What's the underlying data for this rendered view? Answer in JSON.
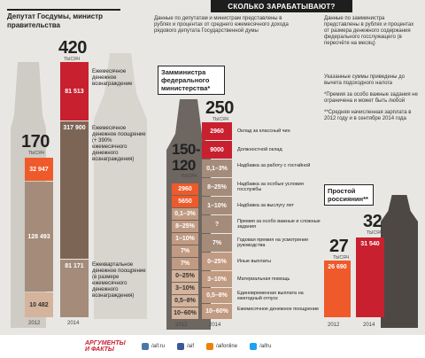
{
  "header": {
    "banner": "СКОЛЬКО ЗАРАБАТЫВАЮТ?"
  },
  "left": {
    "title": "Депутат Госдумы, министр правительства",
    "total_2012": "170",
    "total_2014": "420",
    "unit": "ТЫСЯЧ",
    "bar2012": [
      "32 947",
      "128 493",
      "10 482"
    ],
    "bar2014": [
      "81 513",
      "317 900",
      "81 171"
    ],
    "labels": [
      "Ежемесячное денежное вознаграждение",
      "Ежемесячное денежное поощрение (+ 390% ежемесячного денежного вознаграждения)",
      "Ежеквартальное денежное поощрение (в размере ежемесячного денежного вознаграждения)"
    ],
    "years": [
      "2012",
      "2014"
    ]
  },
  "center": {
    "note": "Данные по депутатам и министрам представлены в рублях и процентах от среднего ежемесячного дохода рядового депутата Государственной думы",
    "box_title": "Замминистра федерального министерства*",
    "total_2012": "150-120",
    "total_2014": "250",
    "unit": "ТЫСЯЧ",
    "bar2012": [
      "2960",
      "5650",
      "0,1–3%",
      "8–25%",
      "1–10%",
      "7%",
      "7%",
      "0–25%",
      "3–10%",
      "0,5–8%",
      "10–60%"
    ],
    "bar2014": [
      "2960",
      "9000",
      "0,1–3%",
      "8–25%",
      "1–10%",
      "?",
      "7%",
      "0–25%",
      "3–10%",
      "0,5–8%",
      "10–60%"
    ],
    "row_labels": [
      "Оклад за классный чин",
      "Должностной оклад",
      "Надбавка за работу с гостайной",
      "Надбавка за особые условия госслужбы",
      "Надбавка за выслугу лет",
      "Премия за особо важные и сложные задания",
      "Годовая премия на усмотрение руководства",
      "Иные выплаты",
      "Материальная помощь",
      "Единовременная выплата на ежегодный отпуск",
      "Ежемесячное денежное поощрение"
    ],
    "years": [
      "2012",
      "2014"
    ]
  },
  "right": {
    "note": "Данные по замминистра представлены в рублях и процентах от размера денежного содержания федерального госслужащего (в пересчёте на месяц)",
    "notes2": [
      "Указанные суммы приведены до вычета подоходного налога",
      "*Премия за особо важные задания не ограничена и может быть любой",
      "**Средняя начисленная зарплата в 2012 году и в сентябре 2014 года"
    ],
    "box_title": "Простой россиянин**",
    "total_2012": "27",
    "total_2014": "32",
    "unit": "ТЫСЯЧ",
    "bar2012": "26 690",
    "bar2014": "31 540",
    "years": [
      "2012",
      "2014"
    ]
  },
  "footer": {
    "logo": "АРГУМЕНТЫ И ФАКТЫ",
    "links": [
      "/aif.ru",
      "/aif",
      "/aifonline",
      "/aifru"
    ]
  },
  "colors": {
    "red": "#c8202f",
    "orange": "#ef5a2a",
    "brown": "#a48b7a",
    "darkbrown": "#7d6556",
    "tan": "#d4b49c"
  }
}
